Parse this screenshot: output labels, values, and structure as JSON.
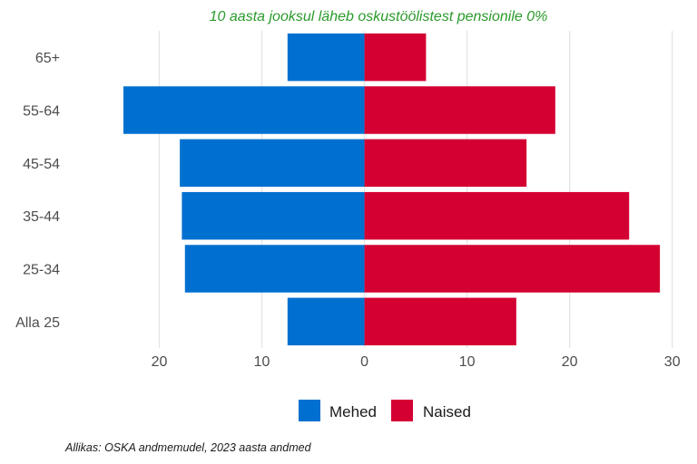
{
  "caption": "Allikas: OSKA andmemudel, 2023 aasta andmed",
  "colors": {
    "mehed": "#0070d0",
    "naised": "#d40032",
    "title": "#2a9a2a",
    "grid": "#e3e3e3"
  },
  "chart_data": {
    "type": "bar",
    "orientation": "horizontal",
    "subtype": "population-pyramid",
    "title": "10 aasta jooksul läheb oskustöölistest pensionile 0%",
    "categories": [
      "65+",
      "55-64",
      "45-54",
      "35-44",
      "25-34",
      "Alla 25"
    ],
    "series": [
      {
        "name": "Mehed",
        "direction": "left",
        "values": [
          7.5,
          23.5,
          18.0,
          17.8,
          17.5,
          7.5
        ]
      },
      {
        "name": "Naised",
        "direction": "right",
        "values": [
          6.0,
          18.6,
          15.8,
          25.8,
          28.8,
          14.8
        ]
      }
    ],
    "xlim": [
      -25,
      31
    ],
    "xticks": [
      -20,
      -10,
      0,
      10,
      20,
      30
    ],
    "xtick_labels": [
      "20",
      "10",
      "0",
      "10",
      "20",
      "30"
    ],
    "grid": true,
    "legend_position": "bottom"
  }
}
